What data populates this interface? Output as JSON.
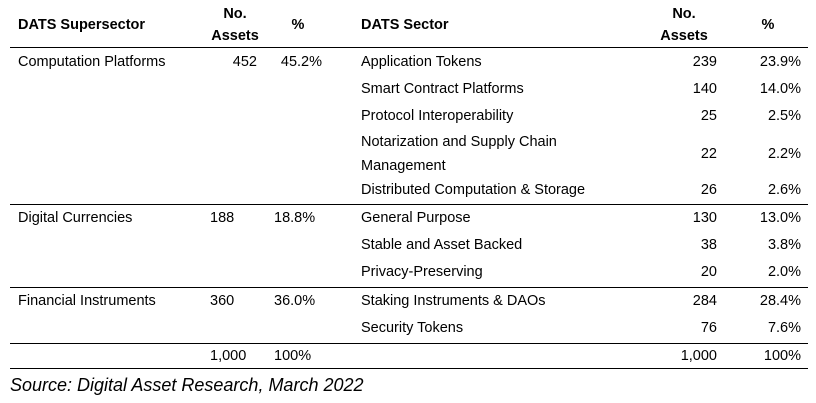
{
  "header": {
    "supersector": "DATS Supersector",
    "no_assets_1": "No.",
    "no_assets_2": "Assets",
    "pct": "%",
    "sector": "DATS Sector"
  },
  "groups": [
    {
      "supersector": "Computation Platforms",
      "count": "452",
      "pct": "45.2%",
      "sectors": [
        {
          "name": "Application Tokens",
          "count": "239",
          "pct": "23.9%"
        },
        {
          "name": "Smart Contract Platforms",
          "count": "140",
          "pct": "14.0%"
        },
        {
          "name": "Protocol Interoperability",
          "count": "25",
          "pct": "2.5%"
        },
        {
          "name_line1": "Notarization and Supply Chain",
          "name_line2": "Management",
          "count": "22",
          "pct": "2.2%"
        },
        {
          "name": "Distributed Computation & Storage",
          "count": "26",
          "pct": "2.6%"
        }
      ]
    },
    {
      "supersector": "Digital Currencies",
      "count": "188",
      "pct": "18.8%",
      "sectors": [
        {
          "name": "General Purpose",
          "count": "130",
          "pct": "13.0%"
        },
        {
          "name": "Stable and Asset Backed",
          "count": "38",
          "pct": "3.8%"
        },
        {
          "name": "Privacy-Preserving",
          "count": "20",
          "pct": "2.0%"
        }
      ]
    },
    {
      "supersector": "Financial Instruments",
      "count": "360",
      "pct": "36.0%",
      "sectors": [
        {
          "name": "Staking Instruments & DAOs",
          "count": "284",
          "pct": "28.4%"
        },
        {
          "name": "Security Tokens",
          "count": "76",
          "pct": "7.6%"
        }
      ]
    }
  ],
  "totals": {
    "super_count": "1,000",
    "super_pct": "100%",
    "sector_count": "1,000",
    "sector_pct": "100%"
  },
  "source": "Source: Digital Asset Research, March 2022"
}
